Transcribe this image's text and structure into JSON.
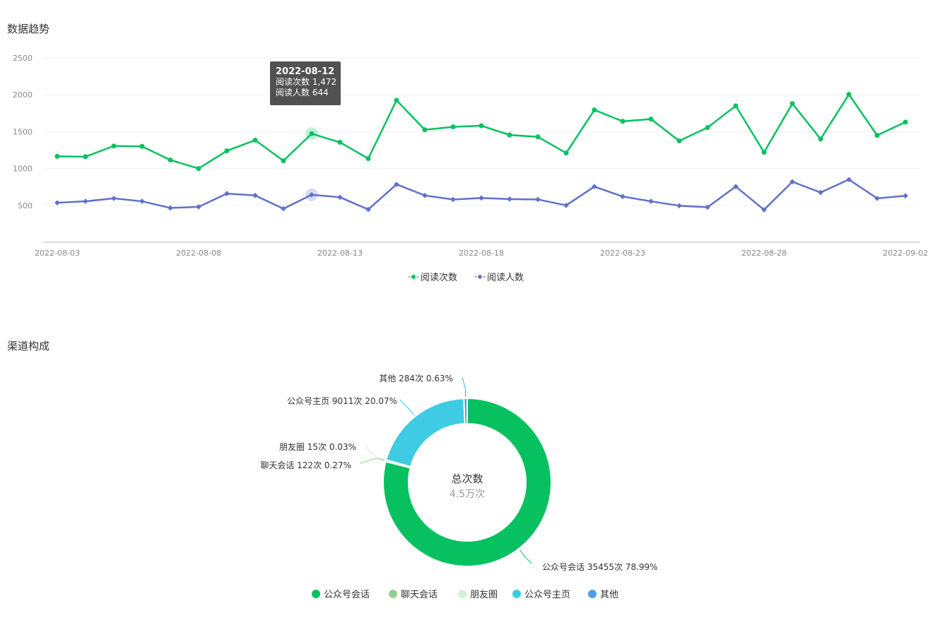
{
  "sections": {
    "trend_title": "数据趋势",
    "channel_title": "渠道构成"
  },
  "tooltip": {
    "date": "2022-08-12",
    "line1": "阅读次数 1,472",
    "line2": "阅读人数 644"
  },
  "chart_data": [
    {
      "type": "line",
      "title": "数据趋势",
      "x": [
        "2022-08-03",
        "2022-08-04",
        "2022-08-05",
        "2022-08-06",
        "2022-08-07",
        "2022-08-08",
        "2022-08-09",
        "2022-08-10",
        "2022-08-11",
        "2022-08-12",
        "2022-08-13",
        "2022-08-14",
        "2022-08-15",
        "2022-08-16",
        "2022-08-17",
        "2022-08-18",
        "2022-08-19",
        "2022-08-20",
        "2022-08-21",
        "2022-08-22",
        "2022-08-23",
        "2022-08-24",
        "2022-08-25",
        "2022-08-26",
        "2022-08-27",
        "2022-08-28",
        "2022-08-29",
        "2022-08-30",
        "2022-08-31",
        "2022-09-01",
        "2022-09-02"
      ],
      "x_tick_labels": [
        "2022-08-03",
        "2022-08-08",
        "2022-08-13",
        "2022-08-18",
        "2022-08-23",
        "2022-08-28",
        "2022-09-02"
      ],
      "series": [
        {
          "name": "阅读次数",
          "color": "#07c160",
          "marker": "circle",
          "values": [
            1165,
            1160,
            1305,
            1300,
            1115,
            1000,
            1240,
            1385,
            1105,
            1472,
            1355,
            1135,
            1925,
            1525,
            1565,
            1580,
            1455,
            1430,
            1210,
            1795,
            1640,
            1670,
            1375,
            1555,
            1850,
            1220,
            1880,
            1400,
            2005,
            1450,
            1630
          ]
        },
        {
          "name": "阅读人数",
          "color": "#6170c9",
          "marker": "diamond",
          "values": [
            535,
            555,
            595,
            555,
            465,
            480,
            660,
            635,
            455,
            644,
            610,
            445,
            785,
            635,
            580,
            600,
            585,
            580,
            500,
            755,
            620,
            555,
            495,
            475,
            755,
            440,
            820,
            675,
            850,
            595,
            630
          ]
        }
      ],
      "ylim": [
        0,
        2500
      ],
      "y_ticks": [
        500,
        1000,
        1500,
        2000,
        2500
      ],
      "highlight_index": 9,
      "legend_position": "bottom-center",
      "grid": true
    },
    {
      "type": "pie",
      "title": "渠道构成",
      "donut": true,
      "center_title": "总次数",
      "center_value": "4.5万次",
      "slices": [
        {
          "name": "公众号会话",
          "count": 35455,
          "percent": 78.99,
          "color": "#07c160",
          "label": "公众号会话 35455次 78.99%"
        },
        {
          "name": "聊天会话",
          "count": 122,
          "percent": 0.27,
          "color": "#91d38c",
          "label": "聊天会话 122次 0.27%"
        },
        {
          "name": "朋友圈",
          "count": 15,
          "percent": 0.03,
          "color": "#d4efd6",
          "label": "朋友圈 15次 0.03%"
        },
        {
          "name": "公众号主页",
          "count": 9011,
          "percent": 20.07,
          "color": "#3ecbe3",
          "label": "公众号主页 9011次 20.07%"
        },
        {
          "name": "其他",
          "count": 284,
          "percent": 0.63,
          "color": "#4c9fe8",
          "label": "其他 284次 0.63%"
        }
      ],
      "legend_position": "bottom-center"
    }
  ]
}
